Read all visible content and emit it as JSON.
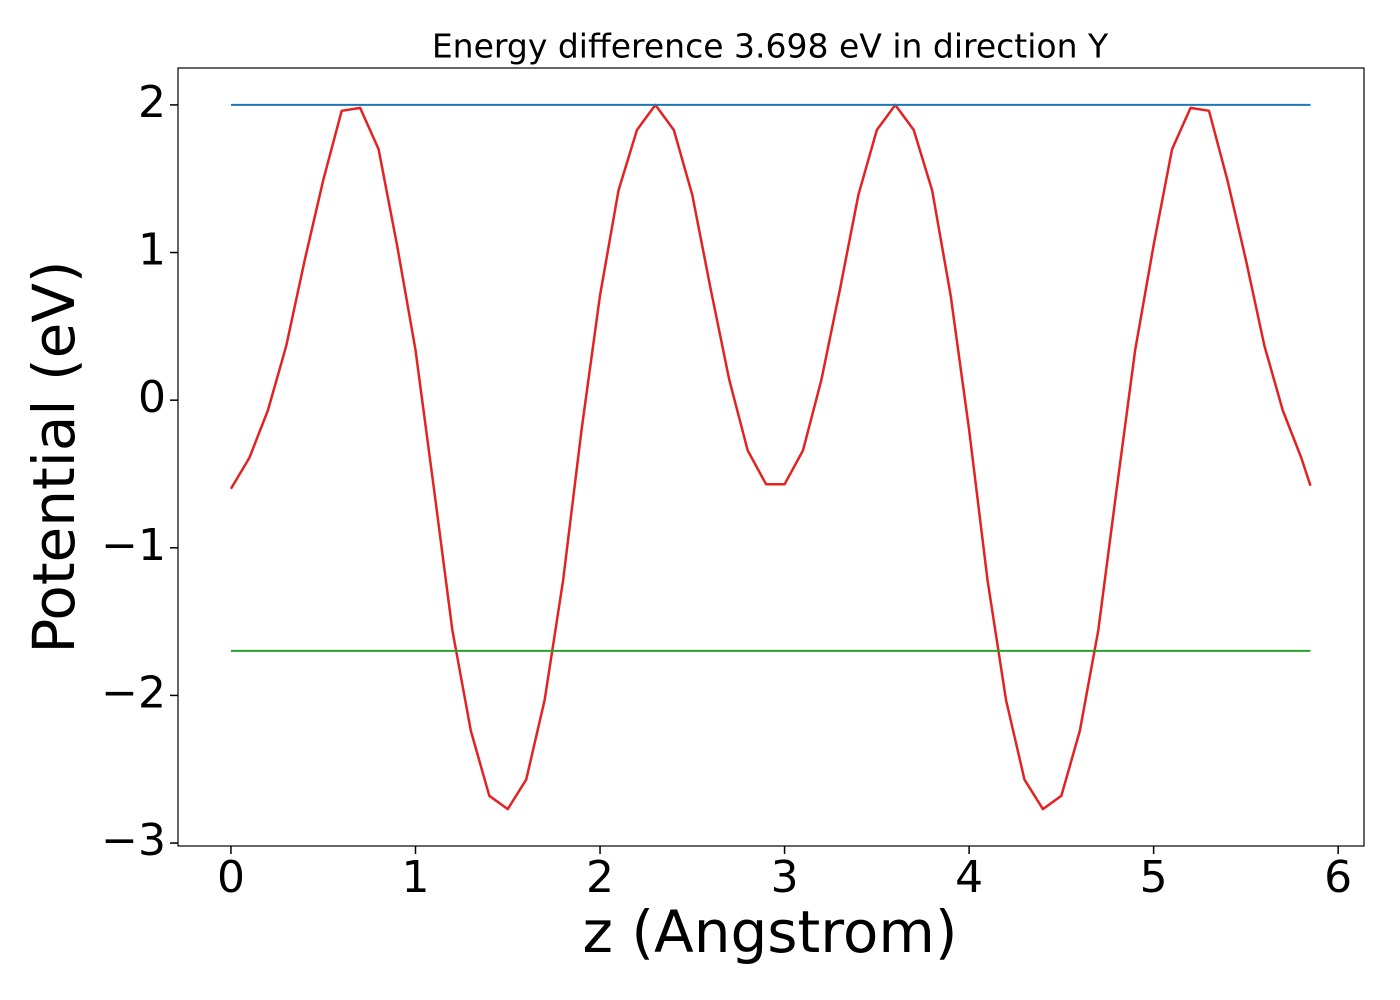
{
  "chart_data": {
    "type": "line",
    "title": "Energy difference 3.698 eV in direction Y",
    "x_label": "z (Angstrom)",
    "y_label": "Potential (eV)",
    "xlim": [
      -0.287,
      6.14
    ],
    "ylim": [
      -3.02,
      2.25
    ],
    "xticks": [
      0,
      1,
      2,
      3,
      4,
      5,
      6
    ],
    "yticks": [
      {
        "value": -3,
        "label": "−3"
      },
      {
        "value": -2,
        "label": "−2"
      },
      {
        "value": -1,
        "label": "−1"
      },
      0,
      1,
      2
    ],
    "grid": false,
    "series": [
      {
        "color": "#e32222",
        "x": [
          0,
          0.1,
          0.2,
          0.3,
          0.4,
          0.5,
          0.6,
          0.7,
          0.8,
          0.9,
          1.0,
          1.1,
          1.2,
          1.3,
          1.4,
          1.5,
          1.6,
          1.7,
          1.8,
          1.9,
          2.0,
          2.1,
          2.2,
          2.3,
          2.4,
          2.5,
          2.6,
          2.7,
          2.8,
          2.9,
          3.0,
          3.1,
          3.2,
          3.3,
          3.4,
          3.5,
          3.6,
          3.7,
          3.8,
          3.9,
          4.0,
          4.1,
          4.2,
          4.3,
          4.4,
          4.5,
          4.6,
          4.7,
          4.8,
          4.9,
          5.0,
          5.1,
          5.2,
          5.3,
          5.4,
          5.5,
          5.6,
          5.7,
          5.8,
          5.85
        ],
        "values": [
          -0.6,
          -0.39,
          -0.07,
          0.37,
          0.95,
          1.49,
          1.96,
          1.98,
          1.7,
          1.05,
          0.34,
          -0.6,
          -1.56,
          -2.24,
          -2.68,
          -2.77,
          -2.57,
          -2.03,
          -1.22,
          -0.2,
          0.71,
          1.42,
          1.83,
          2.0,
          1.83,
          1.39,
          0.75,
          0.14,
          -0.34,
          -0.57,
          -0.57,
          -0.34,
          0.14,
          0.75,
          1.39,
          1.83,
          2.0,
          1.83,
          1.42,
          0.71,
          -0.2,
          -1.22,
          -2.03,
          -2.57,
          -2.77,
          -2.68,
          -2.24,
          -1.56,
          -0.6,
          0.34,
          1.05,
          1.7,
          1.98,
          1.96,
          1.49,
          0.95,
          0.37,
          -0.07,
          -0.39,
          -0.58
        ]
      },
      {
        "color": "#1f77b4",
        "x": [
          0,
          5.85
        ],
        "values": [
          2.0,
          2.0
        ]
      },
      {
        "color": "#2ca02c",
        "x": [
          0,
          5.85
        ],
        "values": [
          -1.698,
          -1.698
        ]
      }
    ]
  }
}
